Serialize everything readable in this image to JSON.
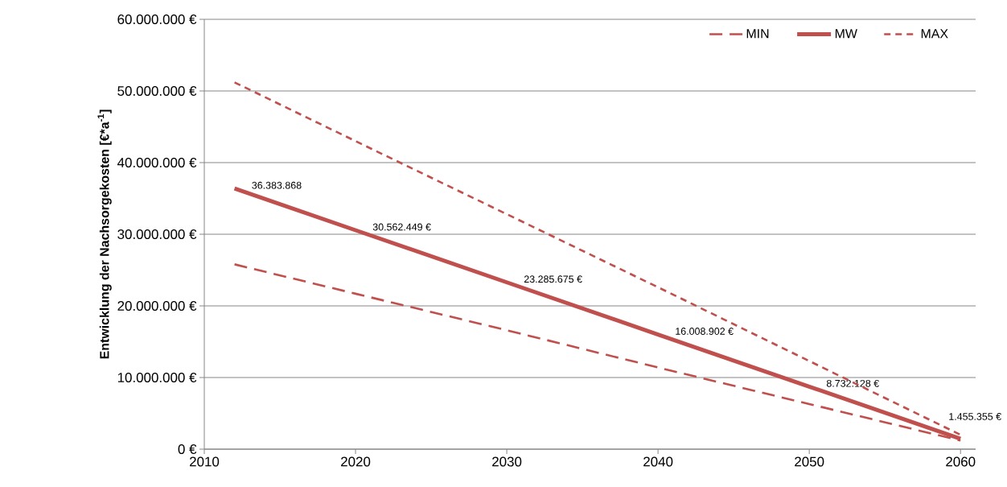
{
  "chart_data": {
    "type": "line",
    "ylabel": "Entwicklung der Nachsorgekosten [€*a$^{-1}$]",
    "x": [
      2012,
      2020,
      2030,
      2040,
      2050,
      2060
    ],
    "series": [
      {
        "name": "MIN",
        "color": "#c0504d",
        "line_style": "dashed",
        "values": [
          25800000,
          21700000,
          16600000,
          11400000,
          6300000,
          1200000
        ]
      },
      {
        "name": "MW",
        "color": "#c0504d",
        "line_style": "solid",
        "values": [
          36383868,
          30562449,
          23285675,
          16008902,
          8732128,
          1455355
        ],
        "value_labels": [
          "36.383.868",
          "30.562.449 €",
          "23.285.675 €",
          "16.008.902 €",
          "8.732.128 €",
          "1.455.355 €"
        ]
      },
      {
        "name": "MAX",
        "color": "#c0504d",
        "line_style": "dashed",
        "values": [
          51200000,
          43000000,
          32800000,
          22600000,
          12300000,
          2000000
        ]
      }
    ],
    "xlim": [
      2010,
      2061
    ],
    "xticks": [
      2010,
      2020,
      2030,
      2040,
      2050,
      2060
    ],
    "ylim": [
      0,
      60000000
    ],
    "yticks": [
      {
        "value": 0,
        "label": "0 €"
      },
      {
        "value": 10000000,
        "label": "10.000.000 €"
      },
      {
        "value": 20000000,
        "label": "20.000.000 €"
      },
      {
        "value": 30000000,
        "label": "30.000.000 €"
      },
      {
        "value": 40000000,
        "label": "40.000.000 €"
      },
      {
        "value": 50000000,
        "label": "50.000.000 €"
      },
      {
        "value": 60000000,
        "label": "60.000.000 €"
      }
    ],
    "grid": "y",
    "legend": "top right"
  }
}
